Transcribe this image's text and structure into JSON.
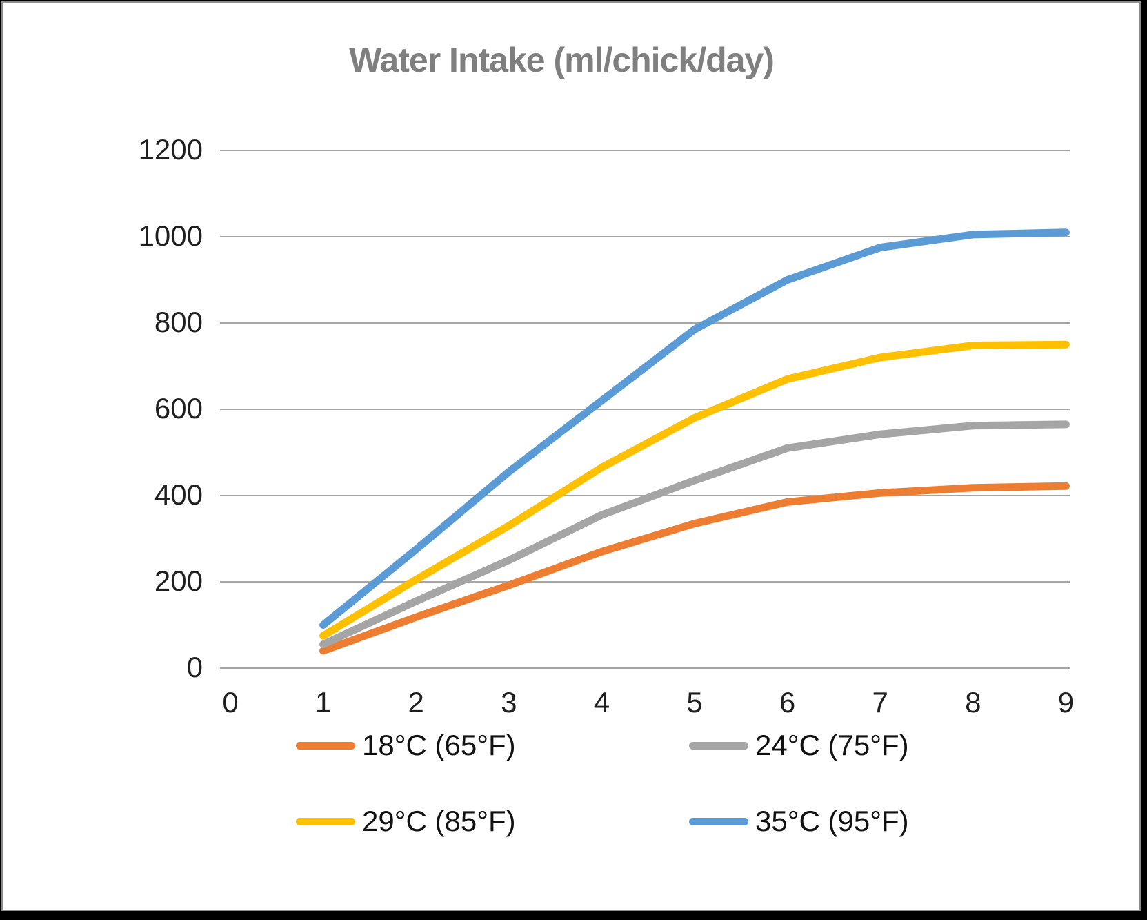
{
  "page": {
    "background_color": "#000000",
    "card_background": "#FFFFFF",
    "card_border_color": "#8C8C8C"
  },
  "chart_data": {
    "type": "line",
    "title": "Water Intake (ml/chick/day)",
    "title_color": "#7F7F7F",
    "xlabel": "",
    "ylabel": "",
    "x": [
      1,
      2,
      3,
      4,
      5,
      6,
      7,
      8,
      9
    ],
    "x_ticks": [
      0,
      1,
      2,
      3,
      4,
      5,
      6,
      7,
      8,
      9
    ],
    "xlim": [
      0,
      9
    ],
    "ylim": [
      0,
      1200
    ],
    "y_ticks": [
      0,
      200,
      400,
      600,
      800,
      1000,
      1200
    ],
    "grid": true,
    "gridline_color": "#A6A6A6",
    "tick_label_color": "#1F1F1F",
    "legend_position": "bottom",
    "legend_rows": 2,
    "legend_columns": 2,
    "series": [
      {
        "name": "18°C (65°F)",
        "color": "#ED7D31",
        "values": [
          40,
          118,
          192,
          270,
          335,
          385,
          406,
          418,
          422
        ]
      },
      {
        "name": "24°C (75°F)",
        "color": "#A5A5A5",
        "values": [
          55,
          155,
          250,
          355,
          435,
          510,
          542,
          562,
          565
        ]
      },
      {
        "name": "29°C (85°F)",
        "color": "#FFC000",
        "values": [
          75,
          205,
          330,
          465,
          580,
          670,
          720,
          748,
          750
        ]
      },
      {
        "name": "35°C (95°F)",
        "color": "#5B9BD5",
        "values": [
          100,
          275,
          455,
          620,
          785,
          900,
          975,
          1005,
          1010
        ]
      }
    ]
  }
}
